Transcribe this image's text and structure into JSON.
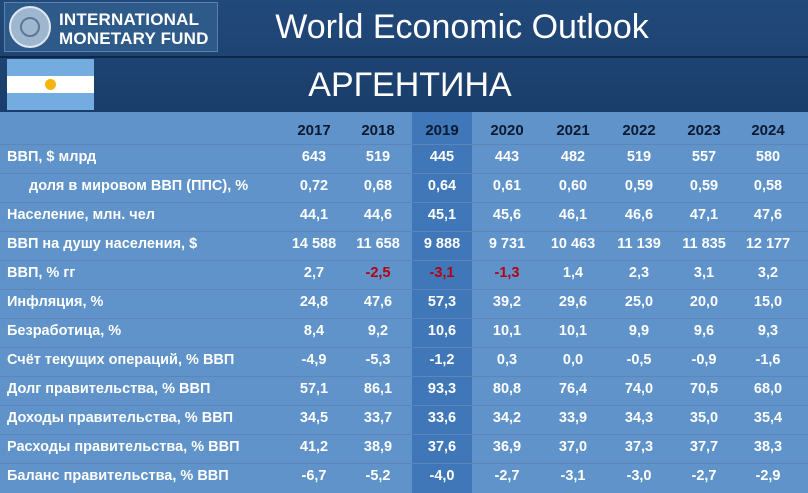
{
  "header": {
    "logo_line1": "INTERNATIONAL",
    "logo_line2": "MONETARY FUND",
    "title": "World Economic Outlook",
    "country": "АРГЕНТИНА"
  },
  "colors": {
    "negative_growth": "#b40010",
    "table_bg": "#5f93c9",
    "highlight_col": "#3f77b8",
    "header_bg": "#1f4575"
  },
  "years": [
    "2017",
    "2018",
    "2019",
    "2020",
    "2021",
    "2022",
    "2023",
    "2024"
  ],
  "rows": [
    {
      "label": "ВВП, $ млрд",
      "indent": false,
      "values": [
        "643",
        "519",
        "445",
        "443",
        "482",
        "519",
        "557",
        "580"
      ]
    },
    {
      "label": "доля в мировом ВВП (ППС), %",
      "indent": true,
      "values": [
        "0,72",
        "0,68",
        "0,64",
        "0,61",
        "0,60",
        "0,59",
        "0,59",
        "0,58"
      ]
    },
    {
      "label": "Население, млн. чел",
      "indent": false,
      "values": [
        "44,1",
        "44,6",
        "45,1",
        "45,6",
        "46,1",
        "46,6",
        "47,1",
        "47,6"
      ]
    },
    {
      "label": "ВВП на душу населения, $",
      "indent": false,
      "values": [
        "14 588",
        "11 658",
        "9 888",
        "9 731",
        "10 463",
        "11 139",
        "11 835",
        "12 177"
      ]
    },
    {
      "label": "ВВП, % гг",
      "indent": false,
      "values": [
        "2,7",
        "-2,5",
        "-3,1",
        "-1,3",
        "1,4",
        "2,3",
        "3,1",
        "3,2"
      ],
      "negative_highlight": true
    },
    {
      "label": "Инфляция, %",
      "indent": false,
      "values": [
        "24,8",
        "47,6",
        "57,3",
        "39,2",
        "29,6",
        "25,0",
        "20,0",
        "15,0"
      ]
    },
    {
      "label": "Безработица, %",
      "indent": false,
      "values": [
        "8,4",
        "9,2",
        "10,6",
        "10,1",
        "10,1",
        "9,9",
        "9,6",
        "9,3"
      ]
    },
    {
      "label": "Счёт текущих операций, % ВВП",
      "indent": false,
      "values": [
        "-4,9",
        "-5,3",
        "-1,2",
        "0,3",
        "0,0",
        "-0,5",
        "-0,9",
        "-1,6"
      ]
    },
    {
      "label": "Долг правительства, % ВВП",
      "indent": false,
      "values": [
        "57,1",
        "86,1",
        "93,3",
        "80,8",
        "76,4",
        "74,0",
        "70,5",
        "68,0"
      ]
    },
    {
      "label": "Доходы правительства, % ВВП",
      "indent": false,
      "values": [
        "34,5",
        "33,7",
        "33,6",
        "34,2",
        "33,9",
        "34,3",
        "35,0",
        "35,4"
      ]
    },
    {
      "label": "Расходы правительства, % ВВП",
      "indent": false,
      "values": [
        "41,2",
        "38,9",
        "37,6",
        "36,9",
        "37,0",
        "37,3",
        "37,7",
        "38,3"
      ]
    },
    {
      "label": "Баланс правительства, % ВВП",
      "indent": false,
      "values": [
        "-6,7",
        "-5,2",
        "-4,0",
        "-2,7",
        "-3,1",
        "-3,0",
        "-2,7",
        "-2,9"
      ]
    }
  ]
}
